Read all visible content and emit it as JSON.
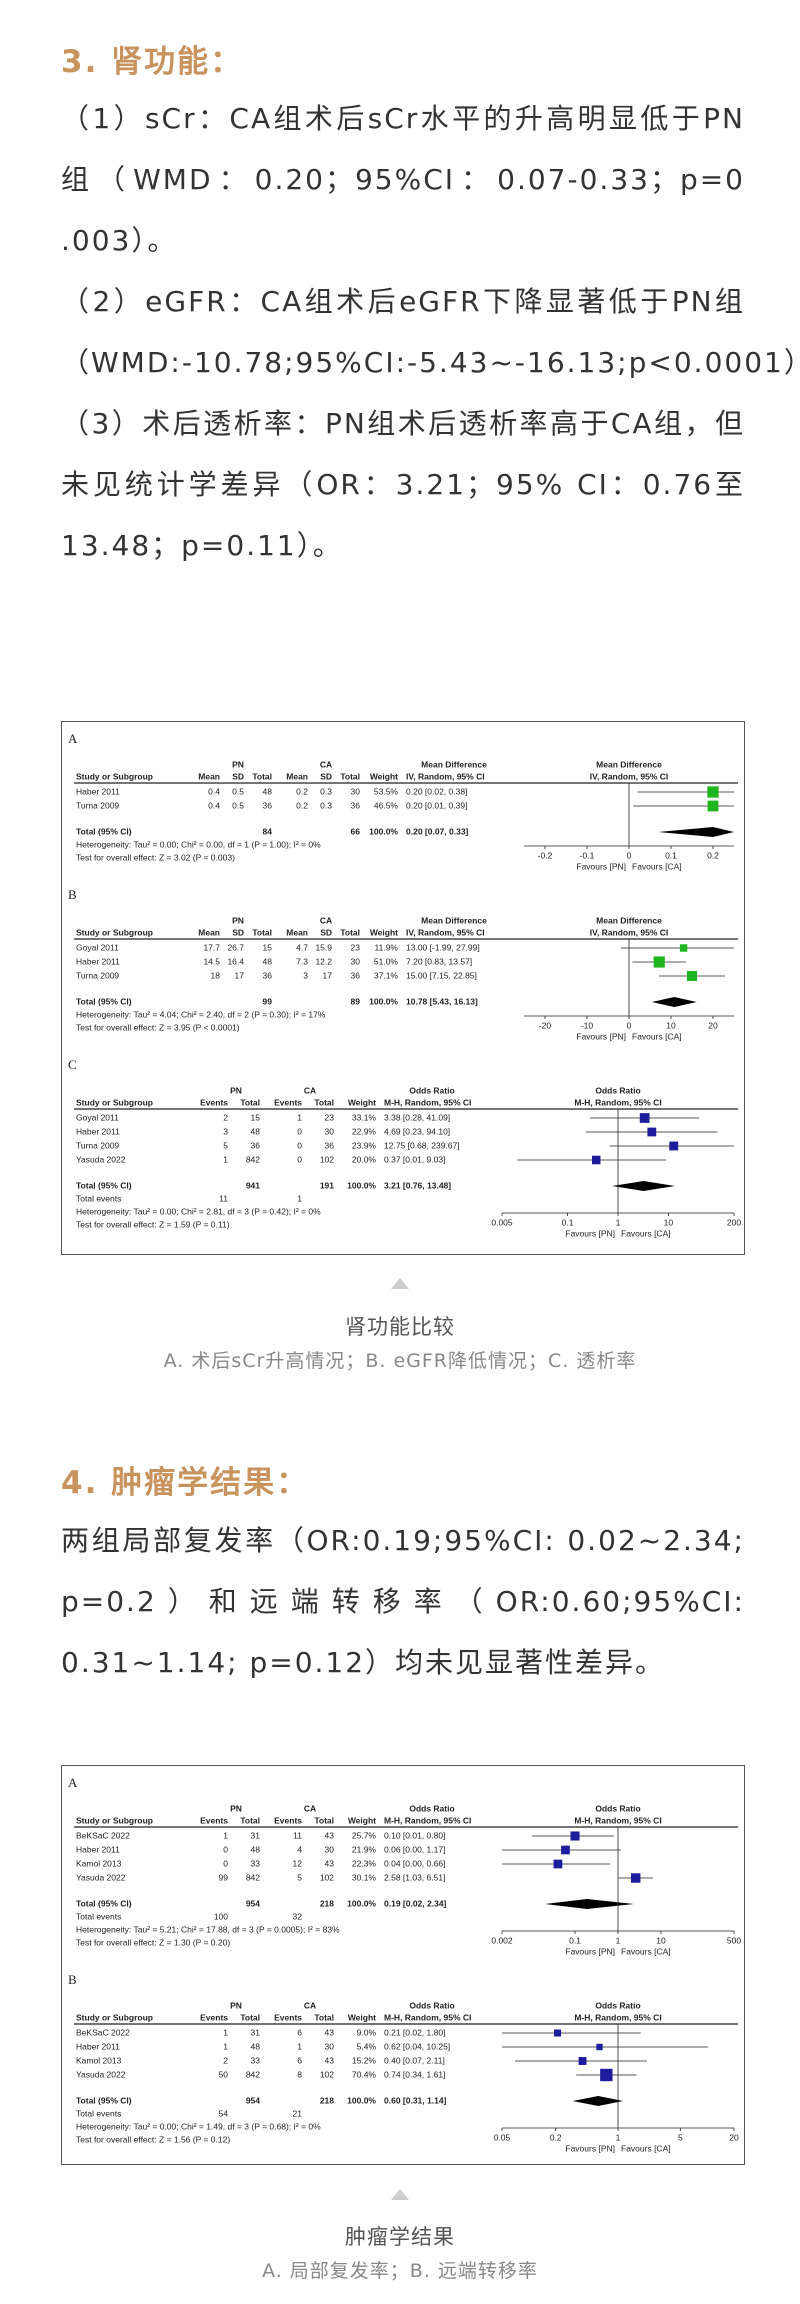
{
  "section3": {
    "heading": "3. 肾功能：",
    "paragraphs": [
      "（1）sCr：CA组术后sCr水平的升高明显低于PN组（WMD：0.20；95%CI：0.07-0.33；p=0 .003）。",
      "（2）eGFR：CA组术后eGFR下降显著低于PN组（WMD:-10.78;95%CI:-5.43~-16.13;p<0.0001）。",
      "（3）术后透析率：PN组术后透析率高于CA组，但未见统计学差异（OR：3.21；95% CI：0.76至13.48；p=0.11）。"
    ]
  },
  "figures": [
    {
      "caption": "肾功能比较",
      "subcaption": "A.  术后sCr升高情况；B. eGFR降低情况；C. 透析率",
      "panels": [
        {
          "label": "A",
          "kind": "md",
          "groups": [
            "PN",
            "CA"
          ],
          "effect_title": "Mean Difference",
          "method": "IV, Random, 95% CI",
          "columns": [
            "Study or Subgroup",
            "Mean",
            "SD",
            "Total",
            "Mean",
            "SD",
            "Total",
            "Weight"
          ],
          "rows": [
            {
              "cells": [
                "Haber 2011",
                "0.4",
                "0.5",
                "48",
                "0.2",
                "0.3",
                "30"
              ],
              "weight": {
                "value": 53.5,
                "label": "53.5%"
              },
              "ci": {
                "label": "0.20 [0.02, 0.38]",
                "est": 0.2,
                "lo": 0.02,
                "hi": 0.38
              }
            },
            {
              "cells": [
                "Turna 2009",
                "0.4",
                "0.5",
                "36",
                "0.2",
                "0.3",
                "36"
              ],
              "weight": {
                "value": 46.5,
                "label": "46.5%"
              },
              "ci": {
                "label": "0.20 [0.01, 0.39]",
                "est": 0.2,
                "lo": 0.01,
                "hi": 0.39
              }
            }
          ],
          "total": {
            "cells": {
              "0": "Total (95% CI)",
              "3": "84",
              "6": "66"
            },
            "weight": "100.0%",
            "ci": {
              "label": "0.20 [0.07, 0.33]",
              "est": 0.2,
              "lo": 0.07,
              "hi": 0.33
            }
          },
          "heterogeneity": "Heterogeneity: Tau² = 0.00; Chi² = 0.00, df = 1 (P = 1.00); I² = 0%",
          "overall": "Test for overall effect: Z = 3.02 (P = 0.003)",
          "xscale": "linear",
          "xlim": [
            -0.25,
            0.25
          ],
          "xticks": [
            -0.2,
            -0.1,
            0,
            0.1,
            0.2
          ],
          "favours": [
            "Favours [PN]",
            "Favours [CA]"
          ],
          "square_color": "#1fb51f"
        },
        {
          "label": "B",
          "kind": "md",
          "groups": [
            "PN",
            "CA"
          ],
          "effect_title": "Mean Difference",
          "method": "IV, Random, 95% CI",
          "columns": [
            "Study or Subgroup",
            "Mean",
            "SD",
            "Total",
            "Mean",
            "SD",
            "Total",
            "Weight"
          ],
          "rows": [
            {
              "cells": [
                "Goyal 2011",
                "17.7",
                "26.7",
                "15",
                "4.7",
                "15.9",
                "23"
              ],
              "weight": {
                "value": 11.9,
                "label": "11.9%"
              },
              "ci": {
                "label": "13.00 [-1.99, 27.99]",
                "est": 13.0,
                "lo": -1.99,
                "hi": 27.99
              }
            },
            {
              "cells": [
                "Haber 2011",
                "14.5",
                "16.4",
                "48",
                "7.3",
                "12.2",
                "30"
              ],
              "weight": {
                "value": 51.0,
                "label": "51.0%"
              },
              "ci": {
                "label": "7.20 [0.83, 13.57]",
                "est": 7.2,
                "lo": 0.83,
                "hi": 13.57
              }
            },
            {
              "cells": [
                "Turna 2009",
                "18",
                "17",
                "36",
                "3",
                "17",
                "36"
              ],
              "weight": {
                "value": 37.1,
                "label": "37.1%"
              },
              "ci": {
                "label": "15.00 [7.15, 22.85]",
                "est": 15.0,
                "lo": 7.15,
                "hi": 22.85
              }
            }
          ],
          "total": {
            "cells": {
              "0": "Total (95% CI)",
              "3": "99",
              "6": "89"
            },
            "weight": "100.0%",
            "ci": {
              "label": "10.78 [5.43, 16.13]",
              "est": 10.78,
              "lo": 5.43,
              "hi": 16.13
            }
          },
          "heterogeneity": "Heterogeneity: Tau² = 4.04; Chi² = 2.40, df = 2 (P = 0.30); I² = 17%",
          "overall": "Test for overall effect: Z = 3.95 (P < 0.0001)",
          "xscale": "linear",
          "xlim": [
            -25,
            25
          ],
          "xticks": [
            -20,
            -10,
            0,
            10,
            20
          ],
          "favours": [
            "Favours [PN]",
            "Favours [CA]"
          ],
          "square_color": "#1fb51f"
        },
        {
          "label": "C",
          "kind": "or",
          "groups": [
            "PN",
            "CA"
          ],
          "effect_title": "Odds Ratio",
          "method": "M-H, Random, 95% CI",
          "columns": [
            "Study or Subgroup",
            "Events",
            "Total",
            "Events",
            "Total",
            "Weight"
          ],
          "rows": [
            {
              "cells": [
                "Goyal 2011",
                "2",
                "15",
                "1",
                "23"
              ],
              "weight": {
                "value": 33.1,
                "label": "33.1%"
              },
              "ci": {
                "label": "3.38 [0.28, 41.09]",
                "est": 3.38,
                "lo": 0.28,
                "hi": 41.09
              }
            },
            {
              "cells": [
                "Haber 2011",
                "3",
                "48",
                "0",
                "30"
              ],
              "weight": {
                "value": 22.9,
                "label": "22.9%"
              },
              "ci": {
                "label": "4.69 [0.23, 94.10]",
                "est": 4.69,
                "lo": 0.23,
                "hi": 94.1
              }
            },
            {
              "cells": [
                "Turna 2009",
                "5",
                "36",
                "0",
                "36"
              ],
              "weight": {
                "value": 23.9,
                "label": "23.9%"
              },
              "ci": {
                "label": "12.75 [0.68, 239.67]",
                "est": 12.75,
                "lo": 0.68,
                "hi": 239.67
              }
            },
            {
              "cells": [
                "Yasuda 2022",
                "1",
                "842",
                "0",
                "102"
              ],
              "weight": {
                "value": 20.0,
                "label": "20.0%"
              },
              "ci": {
                "label": "0.37 [0.01, 9.03]",
                "est": 0.37,
                "lo": 0.01,
                "hi": 9.03
              }
            }
          ],
          "total": {
            "cells": {
              "0": "Total (95% CI)",
              "2": "941",
              "4": "191"
            },
            "weight": "100.0%",
            "ci": {
              "label": "3.21 [0.76, 13.48]",
              "est": 3.21,
              "lo": 0.76,
              "hi": 13.48
            }
          },
          "events": {
            "0": "Total events",
            "1": "11",
            "3": "1"
          },
          "heterogeneity": "Heterogeneity: Tau² = 0.00; Chi² = 2.81, df = 3 (P = 0.42); I² = 0%",
          "overall": "Test for overall effect: Z = 1.59 (P = 0.11)",
          "xscale": "log",
          "xlim": [
            0.005,
            200
          ],
          "xticks": [
            0.005,
            0.1,
            1,
            10,
            200
          ],
          "favours": [
            "Favours [PN]",
            "Favours [CA]"
          ],
          "square_color": "#1c1c9c"
        }
      ]
    },
    {
      "caption": "肿瘤学结果",
      "subcaption": "A.  局部复发率；B. 远端转移率",
      "panels": [
        {
          "label": "A",
          "kind": "or",
          "groups": [
            "PN",
            "CA"
          ],
          "effect_title": "Odds Ratio",
          "method": "M-H, Random, 95% CI",
          "columns": [
            "Study or Subgroup",
            "Events",
            "Total",
            "Events",
            "Total",
            "Weight"
          ],
          "rows": [
            {
              "cells": [
                "BeKSaC 2022",
                "1",
                "31",
                "11",
                "43"
              ],
              "weight": {
                "value": 25.7,
                "label": "25.7%"
              },
              "ci": {
                "label": "0.10 [0.01, 0.80]",
                "est": 0.1,
                "lo": 0.01,
                "hi": 0.8
              }
            },
            {
              "cells": [
                "Haber 2011",
                "0",
                "48",
                "4",
                "30"
              ],
              "weight": {
                "value": 21.9,
                "label": "21.9%"
              },
              "ci": {
                "label": "0.06 [0.00, 1.17]",
                "est": 0.06,
                "lo": 0.0,
                "hi": 1.17
              }
            },
            {
              "cells": [
                "Kamol 2013",
                "0",
                "33",
                "12",
                "43"
              ],
              "weight": {
                "value": 22.3,
                "label": "22.3%"
              },
              "ci": {
                "label": "0.04 [0.00, 0.66]",
                "est": 0.04,
                "lo": 0.0,
                "hi": 0.66
              }
            },
            {
              "cells": [
                "Yasuda 2022",
                "99",
                "842",
                "5",
                "102"
              ],
              "weight": {
                "value": 30.1,
                "label": "30.1%"
              },
              "ci": {
                "label": "2.58 [1.03, 6.51]",
                "est": 2.58,
                "lo": 1.03,
                "hi": 6.51
              }
            }
          ],
          "total": {
            "cells": {
              "0": "Total (95% CI)",
              "2": "954",
              "4": "218"
            },
            "weight": "100.0%",
            "ci": {
              "label": "0.19 [0.02, 2.34]",
              "est": 0.19,
              "lo": 0.02,
              "hi": 2.34
            }
          },
          "events": {
            "0": "Total events",
            "1": "100",
            "3": "32"
          },
          "heterogeneity": "Heterogeneity: Tau² = 5.21; Chi² = 17.88, df = 3 (P = 0.0005); I² = 83%",
          "overall": "Test for overall effect: Z = 1.30 (P = 0.20)",
          "xscale": "log",
          "xlim": [
            0.002,
            500
          ],
          "xticks": [
            0.002,
            0.1,
            1,
            10,
            500
          ],
          "favours": [
            "Favours [PN]",
            "Favours [CA]"
          ],
          "square_color": "#1c1c9c"
        },
        {
          "label": "B",
          "kind": "or",
          "groups": [
            "PN",
            "CA"
          ],
          "effect_title": "Odds Ratio",
          "method": "M-H, Random, 95% CI",
          "columns": [
            "Study or Subgroup",
            "Events",
            "Total",
            "Events",
            "Total",
            "Weight"
          ],
          "rows": [
            {
              "cells": [
                "BeKSaC 2022",
                "1",
                "31",
                "6",
                "43"
              ],
              "weight": {
                "value": 9.0,
                "label": "9.0%"
              },
              "ci": {
                "label": "0.21 [0.02, 1.80]",
                "est": 0.21,
                "lo": 0.02,
                "hi": 1.8
              }
            },
            {
              "cells": [
                "Haber 2011",
                "1",
                "48",
                "1",
                "30"
              ],
              "weight": {
                "value": 5.4,
                "label": "5.4%"
              },
              "ci": {
                "label": "0.62 [0.04, 10.25]",
                "est": 0.62,
                "lo": 0.04,
                "hi": 10.25
              }
            },
            {
              "cells": [
                "Kamol 2013",
                "2",
                "33",
                "6",
                "43"
              ],
              "weight": {
                "value": 15.2,
                "label": "15.2%"
              },
              "ci": {
                "label": "0.40 [0.07, 2.11]",
                "est": 0.4,
                "lo": 0.07,
                "hi": 2.11
              }
            },
            {
              "cells": [
                "Yasuda 2022",
                "50",
                "842",
                "8",
                "102"
              ],
              "weight": {
                "value": 70.4,
                "label": "70.4%"
              },
              "ci": {
                "label": "0.74 [0.34, 1.61]",
                "est": 0.74,
                "lo": 0.34,
                "hi": 1.61
              }
            }
          ],
          "total": {
            "cells": {
              "0": "Total (95% CI)",
              "2": "954",
              "4": "218"
            },
            "weight": "100.0%",
            "ci": {
              "label": "0.60 [0.31, 1.14]",
              "est": 0.6,
              "lo": 0.31,
              "hi": 1.14
            }
          },
          "events": {
            "0": "Total events",
            "1": "54",
            "3": "21"
          },
          "heterogeneity": "Heterogeneity: Tau² = 0.00; Chi² = 1.49, df = 3 (P = 0.68); I² = 0%",
          "overall": "Test for overall effect: Z = 1.56 (P = 0.12)",
          "xscale": "log",
          "xlim": [
            0.05,
            20
          ],
          "xticks": [
            0.05,
            0.2,
            1,
            5,
            20
          ],
          "favours": [
            "Favours [PN]",
            "Favours [CA]"
          ],
          "square_color": "#1c1c9c"
        }
      ]
    }
  ],
  "section4": {
    "heading": "4. 肿瘤学结果：",
    "paragraphs": [
      "两组局部复发率（OR:0.19;95%CI: 0.02~2.34; p=0.2）和远端转移率（OR:0.60;95%CI: 0.31~1.14; p=0.12）均未见显著性差异。"
    ]
  }
}
